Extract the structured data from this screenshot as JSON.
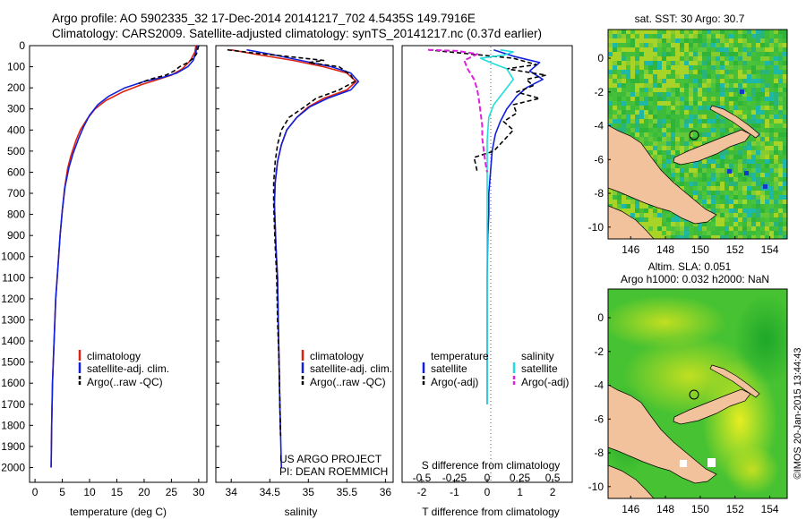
{
  "header": {
    "title_line1": "Argo profile: AO 5902335_32 17-Dec-2014 20141217_702 4.5435S 149.7916E",
    "title_line2": "Climatology: CARS2009. Satellite-adjusted climatology: synTS_20141217.nc (0.37d earlier)"
  },
  "colors": {
    "climatology": "#dd2211",
    "satellite": "#1020dd",
    "argo": "#000000",
    "sat_salinity": "#22dddd",
    "argo_salinity": "#dd22dd",
    "land": "#f2c29c"
  },
  "chart_data": [
    {
      "type": "line",
      "id": "temperature",
      "xlabel": "temperature (deg C)",
      "xlim": [
        -1,
        31.5
      ],
      "ylim": [
        0,
        2070
      ],
      "xticks": [
        0,
        5,
        10,
        15,
        20,
        25,
        30
      ],
      "yticks": [
        0,
        100,
        200,
        300,
        400,
        500,
        600,
        700,
        800,
        900,
        1000,
        1100,
        1200,
        1300,
        1400,
        1500,
        1600,
        1700,
        1800,
        1900,
        2000
      ],
      "legend": [
        "climatology",
        "satellite-adj. clim.",
        "Argo(..raw -QC)"
      ],
      "legend_position": "bottom-right",
      "series": [
        {
          "name": "climatology",
          "points": [
            [
              29.5,
              0
            ],
            [
              29.3,
              30
            ],
            [
              28.5,
              70
            ],
            [
              27,
              110
            ],
            [
              25,
              140
            ],
            [
              22,
              165
            ],
            [
              19.5,
              185
            ],
            [
              16,
              220
            ],
            [
              13,
              260
            ],
            [
              11,
              300
            ],
            [
              9.5,
              350
            ],
            [
              8.3,
              400
            ],
            [
              7.5,
              450
            ],
            [
              6.6,
              520
            ],
            [
              6,
              580
            ],
            [
              5.4,
              680
            ],
            [
              5,
              780
            ],
            [
              4.6,
              900
            ],
            [
              4.2,
              1050
            ],
            [
              3.8,
              1200
            ],
            [
              3.5,
              1400
            ],
            [
              3.2,
              1600
            ],
            [
              3.05,
              1800
            ],
            [
              2.95,
              2000
            ]
          ]
        },
        {
          "name": "satellite-adj. clim.",
          "points": [
            [
              29.7,
              0
            ],
            [
              29.5,
              30
            ],
            [
              29,
              70
            ],
            [
              28,
              100
            ],
            [
              26,
              130
            ],
            [
              23.5,
              150
            ],
            [
              20,
              170
            ],
            [
              16.5,
              200
            ],
            [
              13.5,
              240
            ],
            [
              11.5,
              280
            ],
            [
              10,
              330
            ],
            [
              9,
              380
            ],
            [
              8,
              440
            ],
            [
              7,
              510
            ],
            [
              6.2,
              580
            ],
            [
              5.5,
              670
            ],
            [
              5,
              780
            ],
            [
              4.6,
              900
            ],
            [
              4.2,
              1050
            ],
            [
              3.8,
              1200
            ],
            [
              3.5,
              1400
            ],
            [
              3.2,
              1600
            ],
            [
              3.05,
              1800
            ],
            [
              2.95,
              2000
            ]
          ]
        },
        {
          "name": "Argo(..raw -QC)",
          "points": [
            [
              30,
              0
            ],
            [
              29.8,
              20
            ],
            [
              29.6,
              40
            ],
            [
              29,
              60
            ],
            [
              28,
              80
            ],
            [
              26.5,
              100
            ],
            [
              25.5,
              120
            ],
            [
              24,
              140
            ],
            [
              21,
              160
            ],
            [
              19,
              180
            ]
          ]
        }
      ]
    },
    {
      "type": "line",
      "id": "salinity",
      "xlabel": "salinity",
      "xlim": [
        33.8,
        36.1
      ],
      "ylim": [
        0,
        2070
      ],
      "xticks": [
        34,
        34.5,
        35,
        35.5,
        36
      ],
      "legend": [
        "climatology",
        "satellite-adj. clim.",
        "Argo(..raw -QC)"
      ],
      "legend_position": "bottom-right",
      "annotations": [
        "US ARGO PROJECT",
        "PI: DEAN ROEMMICH"
      ],
      "series": [
        {
          "name": "climatology",
          "points": [
            [
              34,
              20
            ],
            [
              34.3,
              40
            ],
            [
              34.8,
              70
            ],
            [
              35.2,
              100
            ],
            [
              35.5,
              130
            ],
            [
              35.62,
              170
            ],
            [
              35.5,
              210
            ],
            [
              35.2,
              250
            ],
            [
              35,
              290
            ],
            [
              34.85,
              340
            ],
            [
              34.72,
              400
            ],
            [
              34.65,
              470
            ],
            [
              34.6,
              550
            ],
            [
              34.57,
              650
            ],
            [
              34.56,
              750
            ],
            [
              34.57,
              850
            ],
            [
              34.58,
              950
            ],
            [
              34.6,
              1100
            ],
            [
              34.61,
              1300
            ],
            [
              34.62,
              1500
            ],
            [
              34.63,
              1700
            ],
            [
              34.64,
              1850
            ]
          ]
        },
        {
          "name": "satellite-adj. clim.",
          "points": [
            [
              34.2,
              20
            ],
            [
              34.5,
              40
            ],
            [
              34.9,
              70
            ],
            [
              35.3,
              100
            ],
            [
              35.55,
              130
            ],
            [
              35.65,
              170
            ],
            [
              35.55,
              210
            ],
            [
              35.25,
              250
            ],
            [
              35.02,
              290
            ],
            [
              34.85,
              340
            ],
            [
              34.72,
              400
            ],
            [
              34.65,
              470
            ],
            [
              34.6,
              550
            ],
            [
              34.57,
              650
            ],
            [
              34.56,
              750
            ],
            [
              34.57,
              850
            ],
            [
              34.58,
              950
            ],
            [
              34.6,
              1100
            ],
            [
              34.61,
              1300
            ],
            [
              34.62,
              1500
            ],
            [
              34.63,
              1700
            ],
            [
              34.65,
              2000
            ]
          ]
        },
        {
          "name": "Argo(..raw -QC)",
          "points": [
            [
              33.95,
              20
            ],
            [
              34.3,
              35
            ],
            [
              34.7,
              50
            ],
            [
              35.2,
              70
            ],
            [
              35,
              80
            ],
            [
              35.4,
              100
            ],
            [
              35.55,
              140
            ],
            [
              35.6,
              170
            ],
            [
              35.4,
              210
            ],
            [
              35.1,
              250
            ],
            [
              34.95,
              290
            ],
            [
              34.75,
              340
            ],
            [
              34.65,
              400
            ],
            [
              34.6,
              470
            ],
            [
              34.57,
              550
            ],
            [
              34.55,
              650
            ],
            [
              34.55,
              750
            ],
            [
              34.56,
              850
            ],
            [
              34.57,
              950
            ],
            [
              34.59,
              1100
            ],
            [
              34.6,
              1300
            ],
            [
              34.62,
              1500
            ],
            [
              34.63,
              1700
            ],
            [
              34.64,
              1850
            ]
          ]
        }
      ]
    },
    {
      "type": "line",
      "id": "difference",
      "xlabel": "T difference from climatology",
      "xlabel_top": "S difference from climatology",
      "xlim": [
        -2.6,
        2.6
      ],
      "ylim": [
        0,
        2070
      ],
      "xticks": [
        -2,
        -1,
        0,
        1,
        2
      ],
      "xticks_top": [
        {
          "label": "-0.5",
          "x": -2
        },
        {
          "label": "-0.25",
          "x": -1
        },
        {
          "label": "0",
          "x": 0
        },
        {
          "label": "0.25",
          "x": 1
        },
        {
          "label": "0.5",
          "x": 2
        }
      ],
      "legend_temperature_title": "temperature",
      "legend_salinity_title": "salinity",
      "legend_temperature": [
        "satellite",
        "Argo(-adj)"
      ],
      "legend_salinity": [
        "satellite",
        "Argo(-adj)"
      ],
      "series": [
        {
          "name": "temperature satellite",
          "points": [
            [
              0.2,
              20
            ],
            [
              0.8,
              50
            ],
            [
              1.6,
              80
            ],
            [
              1.3,
              120
            ],
            [
              1.7,
              160
            ],
            [
              1.2,
              200
            ],
            [
              0.9,
              240
            ],
            [
              0.6,
              300
            ],
            [
              0.4,
              360
            ],
            [
              0.25,
              420
            ],
            [
              0.15,
              500
            ],
            [
              0.1,
              600
            ],
            [
              0.05,
              700
            ],
            [
              0.05,
              800
            ],
            [
              0.02,
              900
            ],
            [
              0,
              1100
            ],
            [
              0,
              1300
            ],
            [
              0,
              1500
            ],
            [
              0,
              1700
            ],
            [
              0,
              1700
            ]
          ]
        },
        {
          "name": "temperature Argo(-adj)",
          "points": [
            [
              -1.8,
              20
            ],
            [
              -0.5,
              40
            ],
            [
              0.8,
              60
            ],
            [
              1.5,
              90
            ],
            [
              0.6,
              110
            ],
            [
              1.8,
              140
            ],
            [
              1.2,
              160
            ],
            [
              1.4,
              190
            ],
            [
              0.9,
              220
            ],
            [
              1.6,
              250
            ],
            [
              0.8,
              280
            ],
            [
              0.9,
              320
            ],
            [
              0.5,
              360
            ],
            [
              0.8,
              400
            ],
            [
              0.5,
              450
            ],
            [
              0.2,
              500
            ],
            [
              -0.4,
              530
            ],
            [
              -0.3,
              600
            ]
          ]
        },
        {
          "name": "salinity satellite",
          "points": [
            [
              0.4,
              20
            ],
            [
              0.8,
              30
            ],
            [
              0.5,
              45
            ],
            [
              -0.2,
              60
            ],
            [
              0.1,
              80
            ],
            [
              0.6,
              110
            ],
            [
              0.8,
              160
            ],
            [
              0.5,
              220
            ],
            [
              0.2,
              280
            ],
            [
              0.05,
              340
            ],
            [
              0,
              450
            ],
            [
              0,
              600
            ],
            [
              0,
              800
            ],
            [
              0,
              1000
            ],
            [
              0,
              1200
            ],
            [
              0,
              1400
            ],
            [
              0,
              1700
            ]
          ]
        },
        {
          "name": "salinity Argo(-adj)",
          "points": [
            [
              -1.8,
              20
            ],
            [
              -0.9,
              25
            ],
            [
              -0.3,
              40
            ],
            [
              -0.7,
              70
            ],
            [
              -0.6,
              110
            ],
            [
              -0.4,
              160
            ],
            [
              -0.3,
              210
            ],
            [
              -0.25,
              260
            ],
            [
              -0.2,
              320
            ],
            [
              -0.15,
              380
            ],
            [
              -0.15,
              440
            ],
            [
              -0.1,
              500
            ],
            [
              -0.05,
              560
            ],
            [
              0,
              600
            ]
          ]
        }
      ]
    },
    {
      "type": "heatmap",
      "id": "sst_map",
      "title": "sat. SST: 30 Argo: 30.7",
      "xlim": [
        144.7,
        155
      ],
      "ylim": [
        -10.7,
        1.7
      ],
      "xticks": [
        146,
        148,
        150,
        152,
        154
      ],
      "yticks": [
        0,
        -2,
        -4,
        -6,
        -8,
        -10
      ],
      "marker": {
        "lon": 149.79,
        "lat": -4.54
      }
    },
    {
      "type": "heatmap",
      "id": "sla_map",
      "title_line1": "Altim. SLA: 0.051",
      "title_line2": "Argo h1000: 0.032 h2000: NaN",
      "xlim": [
        144.7,
        155
      ],
      "ylim": [
        -10.7,
        1.7
      ],
      "xticks": [
        146,
        148,
        150,
        152,
        154
      ],
      "yticks": [
        0,
        -2,
        -4,
        -6,
        -8,
        -10
      ],
      "marker": {
        "lon": 149.79,
        "lat": -4.54
      }
    }
  ],
  "footer": {
    "stamp": "©IMOS 20-Jan-2015 13:44:43"
  }
}
